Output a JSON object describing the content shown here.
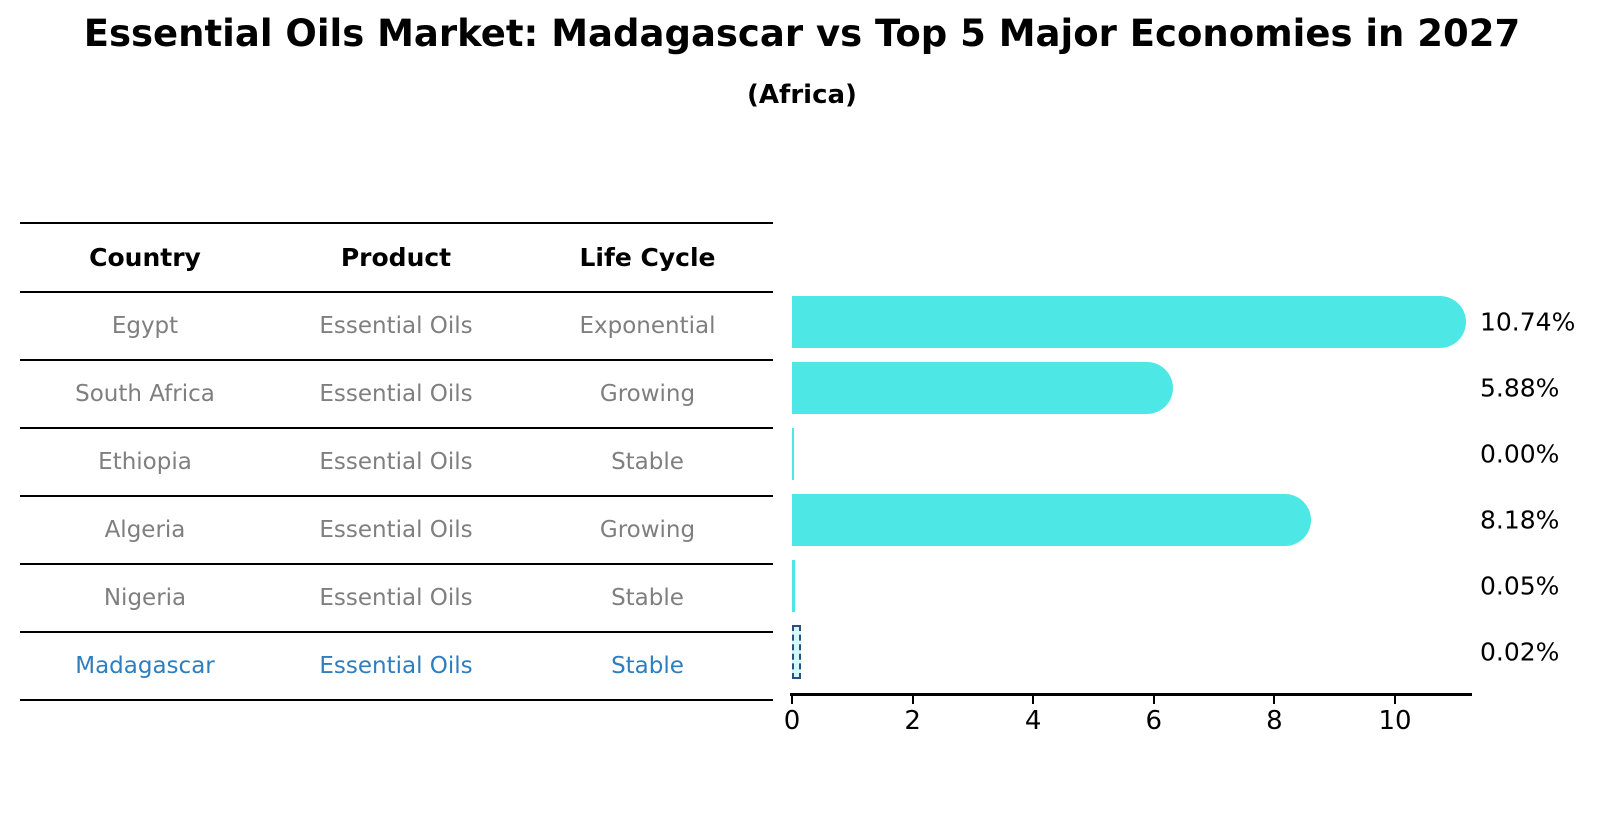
{
  "title": "Essential Oils Market: Madagascar vs Top 5 Major Economies in 2027",
  "subtitle": "(Africa)",
  "table": {
    "headers": [
      "Country",
      "Product",
      "Life Cycle"
    ],
    "rows": [
      {
        "country": "Egypt",
        "product": "Essential Oils",
        "life_cycle": "Exponential",
        "highlight": false
      },
      {
        "country": "South Africa",
        "product": "Essential Oils",
        "life_cycle": "Growing",
        "highlight": false
      },
      {
        "country": "Ethiopia",
        "product": "Essential Oils",
        "life_cycle": "Stable",
        "highlight": false
      },
      {
        "country": "Algeria",
        "product": "Essential Oils",
        "life_cycle": "Growing",
        "highlight": false
      },
      {
        "country": "Nigeria",
        "product": "Essential Oils",
        "life_cycle": "Stable",
        "highlight": false
      },
      {
        "country": "Madagascar",
        "product": "Essential Oils",
        "life_cycle": "Stable",
        "highlight": true
      }
    ]
  },
  "chart_data": {
    "type": "bar",
    "orientation": "horizontal",
    "title": "Essential Oils Market: Madagascar vs Top 5 Major Economies in 2027",
    "subtitle": "(Africa)",
    "categories": [
      "Egypt",
      "South Africa",
      "Ethiopia",
      "Algeria",
      "Nigeria",
      "Madagascar"
    ],
    "values": [
      10.74,
      5.88,
      0.0,
      8.18,
      0.05,
      0.02
    ],
    "value_labels": [
      "10.74%",
      "5.88%",
      "0.00%",
      "8.18%",
      "0.05%",
      "0.02%"
    ],
    "x_ticks": [
      0,
      2,
      4,
      6,
      8,
      10
    ],
    "xlim": [
      0,
      11.25
    ],
    "grid": false,
    "legend": false,
    "bar_color": "#4DE8E6",
    "highlight_index": 5,
    "highlight_country": "Madagascar",
    "highlight_style": "dashed-navy-outline"
  },
  "colors": {
    "bar": "#4DE8E6",
    "table_text": "#7f7f7f",
    "header_text": "#000000",
    "highlight_text": "#2E7EBF",
    "highlight_bar_outline": "#2F4D7E",
    "axis": "#000000",
    "background": "#ffffff"
  }
}
